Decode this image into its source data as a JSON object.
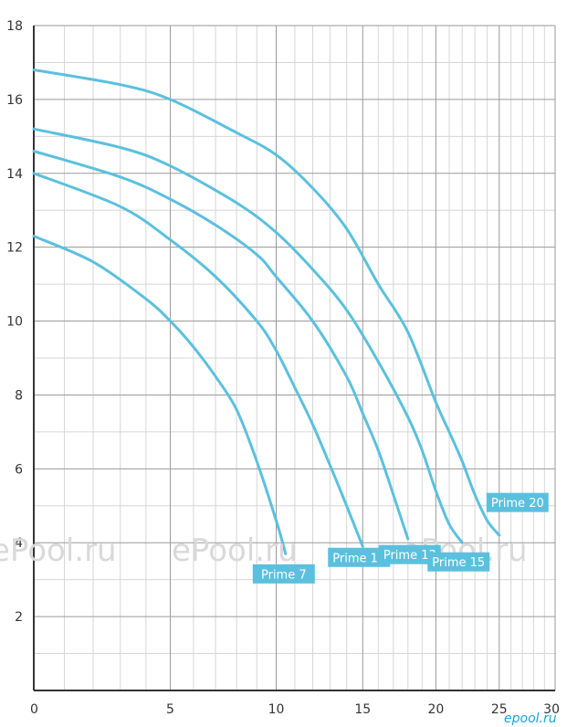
{
  "chart_data": {
    "type": "line",
    "title": "",
    "xlabel": "",
    "ylabel": "",
    "xlim": [
      0,
      30
    ],
    "ylim": [
      0,
      18
    ],
    "x_ticks": [
      "0",
      "5",
      "10",
      "15",
      "20",
      "25",
      "30"
    ],
    "y_ticks": [
      "2",
      "4",
      "6",
      "8",
      "10",
      "12",
      "14",
      "16",
      "18"
    ],
    "x_scale": "log",
    "grid": true,
    "colors": {
      "curve": "#5bc0de",
      "label_bg": "#5bc0de",
      "grid_major": "#9a9a9a",
      "grid_minor": "#d6d6d6",
      "axis": "#333333"
    },
    "series": [
      {
        "name": "Prime 7",
        "x": [
          0,
          2,
          4,
          5,
          6,
          7,
          8,
          9,
          10,
          10.5
        ],
        "y": [
          12.3,
          11.6,
          10.6,
          10.0,
          9.3,
          8.5,
          7.6,
          6.2,
          4.6,
          3.7
        ]
      },
      {
        "name": "Prime 11",
        "x": [
          0,
          3,
          5,
          7,
          9,
          10,
          11,
          12,
          13,
          14,
          15
        ],
        "y": [
          14.0,
          13.1,
          12.2,
          11.2,
          10.0,
          9.2,
          8.2,
          7.2,
          6.1,
          5.0,
          3.9
        ]
      },
      {
        "name": "Prime 13",
        "x": [
          0,
          3,
          5,
          7,
          9,
          10,
          12,
          14,
          15,
          16,
          17,
          18
        ],
        "y": [
          14.6,
          13.9,
          13.3,
          12.6,
          11.8,
          11.2,
          10.0,
          8.5,
          7.5,
          6.5,
          5.3,
          4.1
        ]
      },
      {
        "name": "Prime 15",
        "x": [
          0,
          3,
          5,
          8,
          10,
          12,
          14,
          16,
          18,
          19,
          20,
          21,
          22
        ],
        "y": [
          15.2,
          14.7,
          14.2,
          13.2,
          12.4,
          11.4,
          10.3,
          8.9,
          7.4,
          6.5,
          5.4,
          4.5,
          4.0
        ]
      },
      {
        "name": "Prime 20",
        "x": [
          0,
          3,
          5,
          8,
          10,
          12,
          14,
          16,
          18,
          20,
          21,
          22,
          23,
          24,
          25
        ],
        "y": [
          16.8,
          16.4,
          16.0,
          15.1,
          14.5,
          13.6,
          12.5,
          11.0,
          9.7,
          7.8,
          7.0,
          6.2,
          5.3,
          4.6,
          4.2
        ]
      }
    ]
  },
  "watermarks": [
    "ePool.ru",
    "ePool.ru",
    "ePool.ru"
  ],
  "corner_logo": "epool.ru"
}
